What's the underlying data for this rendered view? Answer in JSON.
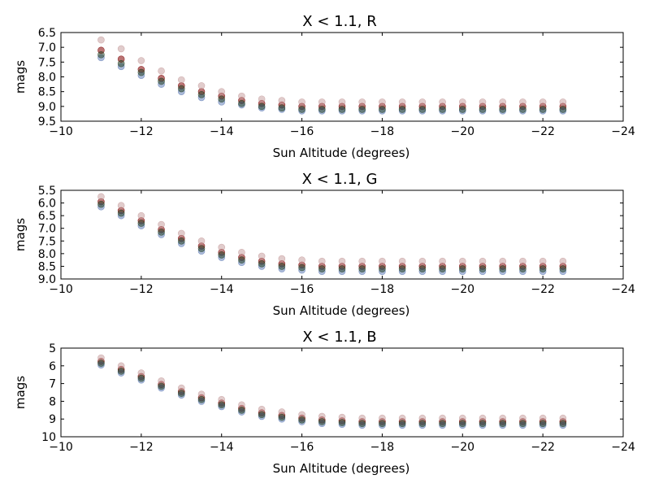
{
  "chart_data": [
    {
      "type": "scatter",
      "title": "X < 1.1, R",
      "xlabel": "Sun Altitude (degrees)",
      "ylabel": "mags",
      "xlim": [
        -10,
        -24
      ],
      "ylim": [
        9.5,
        6.5
      ],
      "y_inverted": true,
      "xticks": [
        "−10",
        "−12",
        "−14",
        "−16",
        "−18",
        "−20",
        "−22",
        "−24"
      ],
      "xtick_values": [
        -10,
        -12,
        -14,
        -16,
        -18,
        -20,
        -22,
        -24
      ],
      "yticks": [
        "6.5",
        "7.0",
        "7.5",
        "8.0",
        "8.5",
        "9.0",
        "9.5"
      ],
      "ytick_values": [
        6.5,
        7.0,
        7.5,
        8.0,
        8.5,
        9.0,
        9.5
      ],
      "grid": false,
      "x": [
        -11.0,
        -11.5,
        -12.0,
        -12.5,
        -13.0,
        -13.5,
        -14.0,
        -14.5,
        -15.0,
        -15.5,
        -16.0,
        -16.5,
        -17.0,
        -17.5,
        -18.0,
        -18.5,
        -19.0,
        -19.5,
        -20.0,
        -20.5,
        -21.0,
        -21.5,
        -22.0,
        -22.5
      ],
      "series": [
        {
          "color": "#7f0000",
          "opacity": 0.55,
          "values": [
            7.1,
            7.4,
            7.75,
            8.05,
            8.3,
            8.5,
            8.65,
            8.8,
            8.9,
            8.95,
            9.0,
            9.0,
            9.0,
            9.0,
            9.0,
            9.0,
            9.0,
            9.0,
            9.0,
            9.0,
            9.0,
            9.0,
            9.0,
            9.0
          ]
        },
        {
          "color": "#c49a9a",
          "opacity": 0.5,
          "values": [
            6.75,
            7.05,
            7.45,
            7.8,
            8.1,
            8.3,
            8.5,
            8.65,
            8.75,
            8.8,
            8.85,
            8.85,
            8.85,
            8.85,
            8.85,
            8.85,
            8.85,
            8.85,
            8.85,
            8.85,
            8.85,
            8.85,
            8.85,
            8.85
          ]
        },
        {
          "color": "#5a78b4",
          "opacity": 0.5,
          "values": [
            7.35,
            7.65,
            7.95,
            8.25,
            8.5,
            8.7,
            8.85,
            8.95,
            9.05,
            9.1,
            9.15,
            9.15,
            9.15,
            9.15,
            9.15,
            9.15,
            9.15,
            9.15,
            9.15,
            9.15,
            9.15,
            9.15,
            9.15,
            9.15
          ]
        },
        {
          "color": "#1e3c1e",
          "opacity": 0.5,
          "values": [
            7.25,
            7.55,
            7.85,
            8.15,
            8.4,
            8.6,
            8.75,
            8.9,
            9.0,
            9.05,
            9.1,
            9.1,
            9.1,
            9.1,
            9.1,
            9.1,
            9.1,
            9.1,
            9.1,
            9.1,
            9.1,
            9.1,
            9.1,
            9.1
          ]
        }
      ]
    },
    {
      "type": "scatter",
      "title": "X < 1.1, G",
      "xlabel": "Sun Altitude (degrees)",
      "ylabel": "mags",
      "xlim": [
        -10,
        -24
      ],
      "ylim": [
        9.0,
        5.5
      ],
      "y_inverted": true,
      "xticks": [
        "−10",
        "−12",
        "−14",
        "−16",
        "−18",
        "−20",
        "−22",
        "−24"
      ],
      "xtick_values": [
        -10,
        -12,
        -14,
        -16,
        -18,
        -20,
        -22,
        -24
      ],
      "yticks": [
        "5.5",
        "6.0",
        "6.5",
        "7.0",
        "7.5",
        "8.0",
        "8.5",
        "9.0"
      ],
      "ytick_values": [
        5.5,
        6.0,
        6.5,
        7.0,
        7.5,
        8.0,
        8.5,
        9.0
      ],
      "grid": false,
      "x": [
        -11.0,
        -11.5,
        -12.0,
        -12.5,
        -13.0,
        -13.5,
        -14.0,
        -14.5,
        -15.0,
        -15.5,
        -16.0,
        -16.5,
        -17.0,
        -17.5,
        -18.0,
        -18.5,
        -19.0,
        -19.5,
        -20.0,
        -20.5,
        -21.0,
        -21.5,
        -22.0,
        -22.5
      ],
      "series": [
        {
          "color": "#7f0000",
          "opacity": 0.55,
          "values": [
            5.95,
            6.3,
            6.7,
            7.05,
            7.4,
            7.7,
            7.95,
            8.15,
            8.3,
            8.4,
            8.45,
            8.5,
            8.5,
            8.5,
            8.5,
            8.5,
            8.5,
            8.5,
            8.5,
            8.5,
            8.5,
            8.5,
            8.5,
            8.5
          ]
        },
        {
          "color": "#c49a9a",
          "opacity": 0.5,
          "values": [
            5.75,
            6.1,
            6.5,
            6.85,
            7.2,
            7.5,
            7.75,
            7.95,
            8.1,
            8.2,
            8.25,
            8.3,
            8.3,
            8.3,
            8.3,
            8.3,
            8.3,
            8.3,
            8.3,
            8.3,
            8.3,
            8.3,
            8.3,
            8.3
          ]
        },
        {
          "color": "#5a78b4",
          "opacity": 0.5,
          "values": [
            6.15,
            6.5,
            6.9,
            7.25,
            7.6,
            7.9,
            8.15,
            8.35,
            8.5,
            8.6,
            8.65,
            8.7,
            8.7,
            8.7,
            8.7,
            8.7,
            8.7,
            8.7,
            8.7,
            8.7,
            8.7,
            8.7,
            8.7,
            8.7
          ]
        },
        {
          "color": "#1e3c1e",
          "opacity": 0.5,
          "values": [
            6.05,
            6.4,
            6.8,
            7.15,
            7.5,
            7.8,
            8.05,
            8.25,
            8.4,
            8.5,
            8.55,
            8.6,
            8.6,
            8.6,
            8.6,
            8.6,
            8.6,
            8.6,
            8.6,
            8.6,
            8.6,
            8.6,
            8.6,
            8.6
          ]
        }
      ]
    },
    {
      "type": "scatter",
      "title": "X < 1.1, B",
      "xlabel": "Sun Altitude (degrees)",
      "ylabel": "mags",
      "xlim": [
        -10,
        -24
      ],
      "ylim": [
        10,
        5
      ],
      "y_inverted": true,
      "xticks": [
        "−10",
        "−12",
        "−14",
        "−16",
        "−18",
        "−20",
        "−22",
        "−24"
      ],
      "xtick_values": [
        -10,
        -12,
        -14,
        -16,
        -18,
        -20,
        -22,
        -24
      ],
      "yticks": [
        "5",
        "6",
        "7",
        "8",
        "9",
        "10"
      ],
      "ytick_values": [
        5,
        6,
        7,
        8,
        9,
        10
      ],
      "grid": false,
      "x": [
        -11.0,
        -11.5,
        -12.0,
        -12.5,
        -13.0,
        -13.5,
        -14.0,
        -14.5,
        -15.0,
        -15.5,
        -16.0,
        -16.5,
        -17.0,
        -17.5,
        -18.0,
        -18.5,
        -19.0,
        -19.5,
        -20.0,
        -20.5,
        -21.0,
        -21.5,
        -22.0,
        -22.5
      ],
      "series": [
        {
          "color": "#7f0000",
          "opacity": 0.55,
          "values": [
            5.75,
            6.2,
            6.6,
            7.05,
            7.45,
            7.8,
            8.1,
            8.4,
            8.65,
            8.8,
            8.95,
            9.05,
            9.1,
            9.15,
            9.15,
            9.15,
            9.15,
            9.15,
            9.15,
            9.15,
            9.15,
            9.15,
            9.15,
            9.15
          ]
        },
        {
          "color": "#c49a9a",
          "opacity": 0.5,
          "values": [
            5.55,
            6.0,
            6.4,
            6.85,
            7.25,
            7.6,
            7.9,
            8.2,
            8.45,
            8.6,
            8.75,
            8.85,
            8.9,
            8.95,
            8.95,
            8.95,
            8.95,
            8.95,
            8.95,
            8.95,
            8.95,
            8.95,
            8.95,
            8.95
          ]
        },
        {
          "color": "#5a78b4",
          "opacity": 0.5,
          "values": [
            5.95,
            6.4,
            6.8,
            7.25,
            7.65,
            8.0,
            8.3,
            8.6,
            8.85,
            9.0,
            9.15,
            9.25,
            9.3,
            9.35,
            9.35,
            9.35,
            9.35,
            9.35,
            9.35,
            9.35,
            9.35,
            9.35,
            9.35,
            9.35
          ]
        },
        {
          "color": "#1e3c1e",
          "opacity": 0.5,
          "values": [
            5.85,
            6.3,
            6.7,
            7.15,
            7.55,
            7.9,
            8.2,
            8.5,
            8.75,
            8.9,
            9.05,
            9.15,
            9.2,
            9.25,
            9.25,
            9.25,
            9.25,
            9.25,
            9.25,
            9.25,
            9.25,
            9.25,
            9.25,
            9.25
          ]
        }
      ]
    }
  ]
}
